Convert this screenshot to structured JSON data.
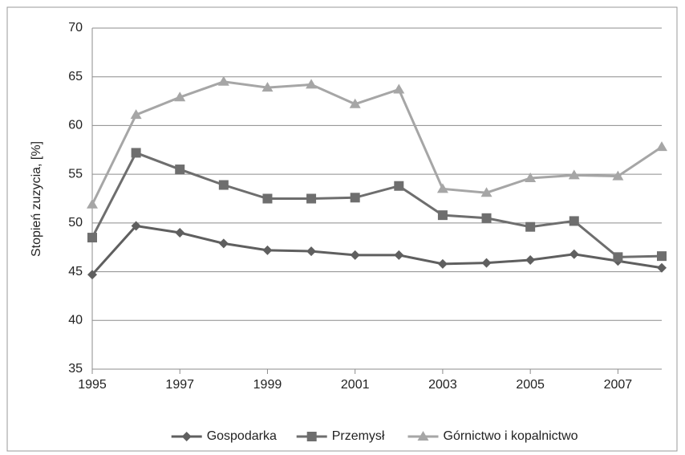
{
  "chart_data": {
    "type": "line",
    "y_label": "Stopień zuzycia, [%]",
    "x": [
      1995,
      1996,
      1997,
      1998,
      1999,
      2000,
      2001,
      2002,
      2003,
      2004,
      2005,
      2006,
      2007,
      2008
    ],
    "xlim": [
      1995,
      2008
    ],
    "xticks": [
      1995,
      1997,
      1999,
      2001,
      2003,
      2005,
      2007
    ],
    "ylim": [
      35,
      70
    ],
    "yticks": [
      35,
      40,
      45,
      50,
      55,
      60,
      65,
      70
    ],
    "grid": true,
    "legend": "bottom",
    "series": [
      {
        "name": "Gospodarka",
        "color": "#5f5f5f",
        "marker": "diamond",
        "values": [
          44.7,
          49.7,
          49.0,
          47.9,
          47.2,
          47.1,
          46.7,
          46.7,
          45.8,
          45.9,
          46.2,
          46.8,
          46.1,
          45.4
        ]
      },
      {
        "name": "Przemysł",
        "color": "#6e6e6e",
        "marker": "square",
        "values": [
          48.5,
          57.2,
          55.5,
          53.9,
          52.5,
          52.5,
          52.6,
          53.8,
          50.8,
          50.5,
          49.6,
          50.2,
          46.5,
          46.6
        ]
      },
      {
        "name": "Górnictwo i kopalnictwo",
        "color": "#a6a6a6",
        "marker": "triangle",
        "values": [
          51.9,
          61.1,
          62.9,
          64.5,
          63.9,
          64.2,
          62.2,
          63.7,
          53.5,
          53.1,
          54.6,
          54.9,
          54.8,
          57.8
        ]
      }
    ]
  }
}
